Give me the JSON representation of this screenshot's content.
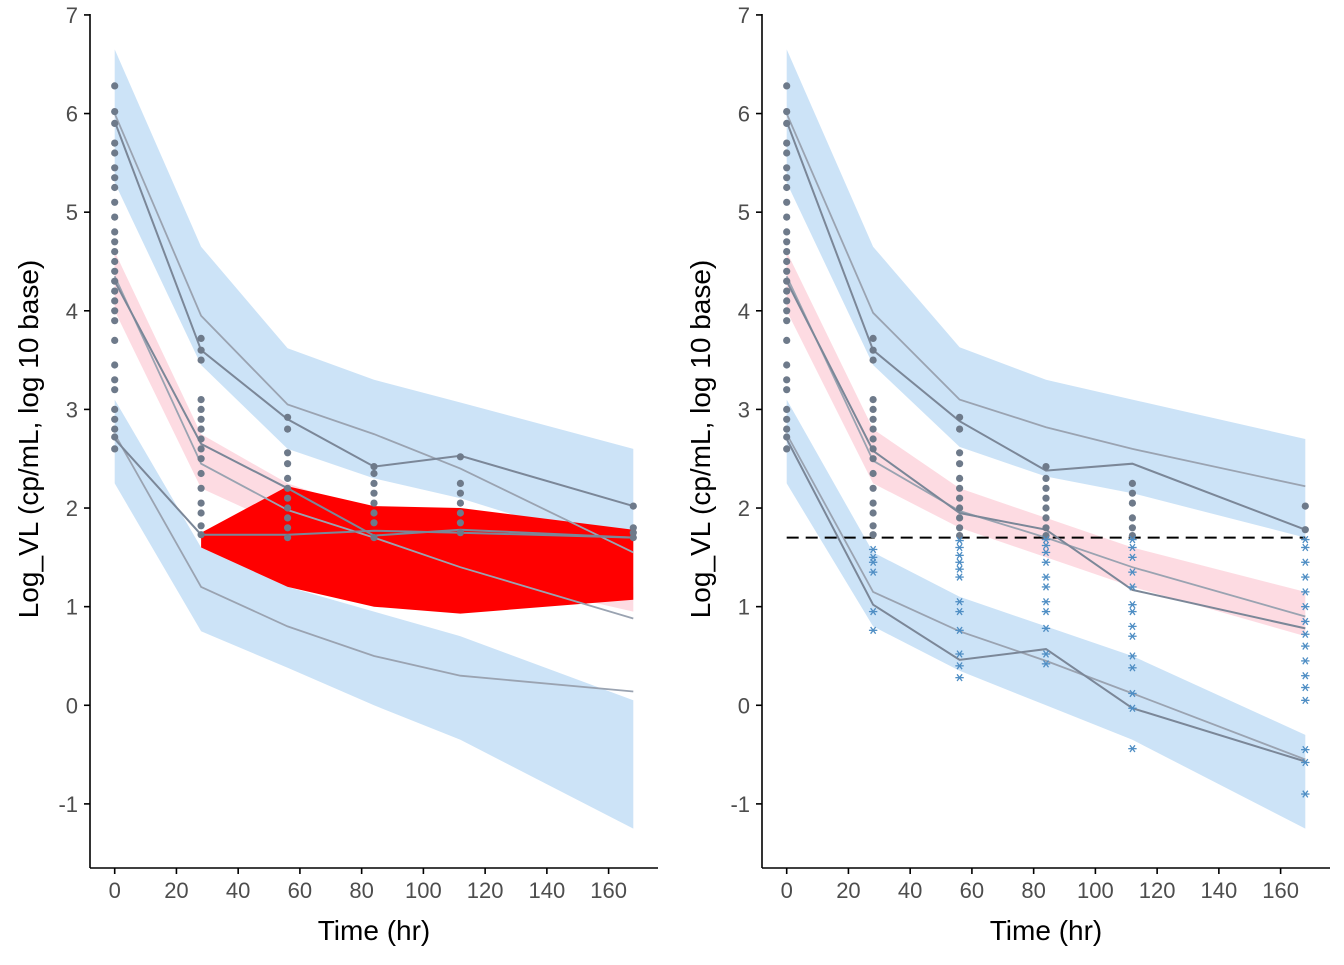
{
  "colors": {
    "blue_band": "#cce3f7",
    "pink_band": "#fdd7df",
    "red_fill": "#ff0000",
    "line": "#7b8798",
    "line_light": "#9aa3b1",
    "point": "#6e7a8a",
    "star": "#4f8ec4",
    "lloq": "#000000"
  },
  "chart_data": [
    {
      "type": "line",
      "panel": "left",
      "xlabel": "Time (hr)",
      "ylabel": "Log_VL (cp/mL, log 10 base)",
      "xlim": [
        -8,
        176
      ],
      "ylim": [
        -1.65,
        7.05
      ],
      "xticks": [
        "0",
        "20",
        "40",
        "60",
        "80",
        "100",
        "120",
        "140",
        "160"
      ],
      "yticks": [
        "-1",
        "0",
        "1",
        "2",
        "3",
        "4",
        "5",
        "6",
        "7"
      ],
      "bands": [
        {
          "role": "upper-pi",
          "color": "blue",
          "x": [
            0,
            28,
            56,
            84,
            112,
            168
          ],
          "lo": [
            5.3,
            3.45,
            2.6,
            2.3,
            2.1,
            1.55
          ],
          "hi": [
            6.65,
            4.65,
            3.62,
            3.3,
            3.07,
            2.6
          ]
        },
        {
          "role": "median-pi",
          "color": "pink",
          "x": [
            0,
            28,
            56,
            84,
            112,
            168
          ],
          "lo": [
            4.0,
            2.2,
            1.8,
            1.55,
            1.35,
            0.95
          ],
          "hi": [
            4.6,
            2.75,
            2.25,
            1.95,
            1.75,
            1.2
          ]
        },
        {
          "role": "lower-pi",
          "color": "blue",
          "x": [
            0,
            28,
            56,
            84,
            112,
            168
          ],
          "lo": [
            2.25,
            0.75,
            0.38,
            0.0,
            -0.35,
            -1.25
          ],
          "hi": [
            3.1,
            1.6,
            1.2,
            0.95,
            0.7,
            0.05
          ]
        }
      ],
      "red_region": {
        "x": [
          28,
          56,
          84,
          112,
          168
        ],
        "lo": [
          1.6,
          1.2,
          1.0,
          0.93,
          1.07
        ],
        "hi": [
          1.75,
          2.22,
          2.02,
          2.0,
          1.78
        ]
      },
      "series": [
        {
          "role": "pred-upper",
          "x": [
            0,
            28,
            56,
            84,
            112,
            168
          ],
          "values": [
            6.0,
            3.95,
            3.05,
            2.75,
            2.4,
            1.55
          ]
        },
        {
          "role": "pred-median",
          "x": [
            0,
            28,
            56,
            84,
            112,
            168
          ],
          "values": [
            4.35,
            2.45,
            1.98,
            1.7,
            1.4,
            0.88
          ]
        },
        {
          "role": "pred-lower",
          "x": [
            0,
            28,
            56,
            84,
            112,
            168
          ],
          "values": [
            2.75,
            1.2,
            0.8,
            0.5,
            0.3,
            0.14
          ]
        },
        {
          "role": "obs-upper",
          "x": [
            0,
            28,
            56,
            84,
            112,
            168
          ],
          "values": [
            5.92,
            3.6,
            2.9,
            2.42,
            2.53,
            2.02
          ]
        },
        {
          "role": "obs-median",
          "x": [
            0,
            28,
            56,
            84,
            112,
            168
          ],
          "values": [
            4.3,
            2.65,
            2.2,
            1.72,
            1.78,
            1.7
          ]
        },
        {
          "role": "obs-lower",
          "x": [
            0,
            28,
            56,
            84,
            112,
            168
          ],
          "values": [
            2.7,
            1.73,
            1.73,
            1.77,
            1.75,
            1.7
          ]
        }
      ],
      "points": [
        {
          "x": 0,
          "y": [
            2.6,
            2.72,
            2.8,
            2.9,
            3.0,
            3.2,
            3.3,
            3.45,
            3.7,
            3.9,
            4.0,
            4.1,
            4.2,
            4.3,
            4.4,
            4.5,
            4.6,
            4.7,
            4.8,
            4.95,
            5.1,
            5.25,
            5.35,
            5.45,
            5.6,
            5.7,
            5.9,
            6.02,
            6.28
          ]
        },
        {
          "x": 28,
          "y": [
            1.73,
            1.82,
            1.95,
            2.05,
            2.2,
            2.35,
            2.5,
            2.6,
            2.7,
            2.8,
            2.9,
            3.0,
            3.1,
            3.5,
            3.6,
            3.72
          ]
        },
        {
          "x": 56,
          "y": [
            1.7,
            1.8,
            1.9,
            2.0,
            2.1,
            2.2,
            2.3,
            2.45,
            2.56,
            2.8,
            2.92
          ]
        },
        {
          "x": 84,
          "y": [
            1.7,
            1.85,
            1.95,
            2.05,
            2.15,
            2.25,
            2.35,
            2.42
          ]
        },
        {
          "x": 112,
          "y": [
            1.75,
            1.85,
            1.95,
            2.05,
            2.15,
            2.25,
            2.52
          ]
        },
        {
          "x": 168,
          "y": [
            1.7,
            1.75,
            1.8,
            2.02
          ]
        }
      ]
    },
    {
      "type": "line",
      "panel": "right",
      "xlabel": "Time (hr)",
      "ylabel": "Log_VL (cp/mL, log 10 base)",
      "xlim": [
        -8,
        176
      ],
      "ylim": [
        -1.65,
        7.05
      ],
      "xticks": [
        "0",
        "20",
        "40",
        "60",
        "80",
        "100",
        "120",
        "140",
        "160"
      ],
      "yticks": [
        "-1",
        "0",
        "1",
        "2",
        "3",
        "4",
        "5",
        "6",
        "7"
      ],
      "lloq": 1.7,
      "bands": [
        {
          "role": "upper-pi",
          "color": "blue",
          "x": [
            0,
            28,
            56,
            84,
            112,
            168
          ],
          "lo": [
            5.3,
            3.45,
            2.62,
            2.32,
            2.15,
            1.7
          ],
          "hi": [
            6.65,
            4.65,
            3.63,
            3.3,
            3.1,
            2.7
          ]
        },
        {
          "role": "median-pi",
          "color": "pink",
          "x": [
            0,
            28,
            56,
            84,
            112,
            168
          ],
          "lo": [
            4.0,
            2.25,
            1.8,
            1.5,
            1.2,
            0.7
          ],
          "hi": [
            4.6,
            2.8,
            2.2,
            1.9,
            1.6,
            1.15
          ]
        },
        {
          "role": "lower-pi",
          "color": "blue",
          "x": [
            0,
            28,
            56,
            84,
            112,
            168
          ],
          "lo": [
            2.25,
            0.8,
            0.35,
            0.0,
            -0.35,
            -1.25
          ],
          "hi": [
            3.1,
            1.55,
            1.1,
            0.8,
            0.5,
            -0.3
          ]
        }
      ],
      "series": [
        {
          "role": "pred-upper",
          "x": [
            0,
            28,
            56,
            84,
            112,
            168
          ],
          "values": [
            6.0,
            3.98,
            3.1,
            2.82,
            2.6,
            2.22
          ]
        },
        {
          "role": "pred-median",
          "x": [
            0,
            28,
            56,
            84,
            112,
            168
          ],
          "values": [
            4.35,
            2.48,
            1.97,
            1.7,
            1.4,
            0.9
          ]
        },
        {
          "role": "pred-lower",
          "x": [
            0,
            28,
            56,
            84,
            112,
            168
          ],
          "values": [
            2.75,
            1.15,
            0.75,
            0.45,
            0.12,
            -0.55
          ]
        },
        {
          "role": "obs-upper",
          "x": [
            0,
            28,
            56,
            84,
            112,
            168
          ],
          "values": [
            5.92,
            3.6,
            2.88,
            2.38,
            2.45,
            1.78
          ]
        },
        {
          "role": "obs-median",
          "x": [
            0,
            28,
            56,
            84,
            112,
            168
          ],
          "values": [
            4.3,
            2.58,
            1.95,
            1.78,
            1.17,
            0.78
          ]
        },
        {
          "role": "obs-lower",
          "x": [
            0,
            28,
            56,
            84,
            112,
            168
          ],
          "values": [
            2.7,
            1.02,
            0.46,
            0.57,
            -0.03,
            -0.57
          ]
        }
      ],
      "points": [
        {
          "x": 0,
          "y": [
            2.6,
            2.72,
            2.8,
            2.9,
            3.0,
            3.2,
            3.3,
            3.45,
            3.7,
            3.9,
            4.0,
            4.1,
            4.2,
            4.3,
            4.4,
            4.5,
            4.6,
            4.7,
            4.8,
            4.95,
            5.1,
            5.25,
            5.35,
            5.45,
            5.6,
            5.7,
            5.9,
            6.02,
            6.28
          ]
        },
        {
          "x": 28,
          "y": [
            1.73,
            1.82,
            1.95,
            2.05,
            2.2,
            2.35,
            2.5,
            2.6,
            2.7,
            2.8,
            2.9,
            3.0,
            3.1,
            3.5,
            3.6,
            3.72
          ]
        },
        {
          "x": 56,
          "y": [
            1.72,
            1.8,
            1.9,
            2.0,
            2.1,
            2.2,
            2.3,
            2.45,
            2.56,
            2.8,
            2.92
          ]
        },
        {
          "x": 84,
          "y": [
            1.72,
            1.8,
            1.9,
            2.0,
            2.1,
            2.2,
            2.3,
            2.42
          ]
        },
        {
          "x": 112,
          "y": [
            1.72,
            1.8,
            1.9,
            2.05,
            2.15,
            2.25
          ]
        },
        {
          "x": 168,
          "y": [
            1.78,
            2.02
          ]
        }
      ],
      "stars": [
        {
          "x": 28,
          "y": [
            0.76,
            0.95,
            1.35,
            1.45,
            1.5,
            1.58
          ]
        },
        {
          "x": 56,
          "y": [
            0.28,
            0.4,
            0.52,
            0.76,
            0.95,
            1.05,
            1.3,
            1.38,
            1.45,
            1.52,
            1.6,
            1.67
          ]
        },
        {
          "x": 84,
          "y": [
            0.42,
            0.52,
            0.78,
            0.95,
            1.05,
            1.2,
            1.3,
            1.45,
            1.55,
            1.62,
            1.68
          ]
        },
        {
          "x": 112,
          "y": [
            -0.44,
            -0.03,
            0.12,
            0.38,
            0.5,
            0.7,
            0.8,
            0.95,
            1.02,
            1.2,
            1.35,
            1.5,
            1.6,
            1.68
          ]
        },
        {
          "x": 168,
          "y": [
            -0.9,
            -0.58,
            -0.45,
            0.05,
            0.18,
            0.3,
            0.45,
            0.6,
            0.72,
            0.85,
            1.0,
            1.15,
            1.3,
            1.45,
            1.6,
            1.68
          ]
        }
      ]
    }
  ]
}
